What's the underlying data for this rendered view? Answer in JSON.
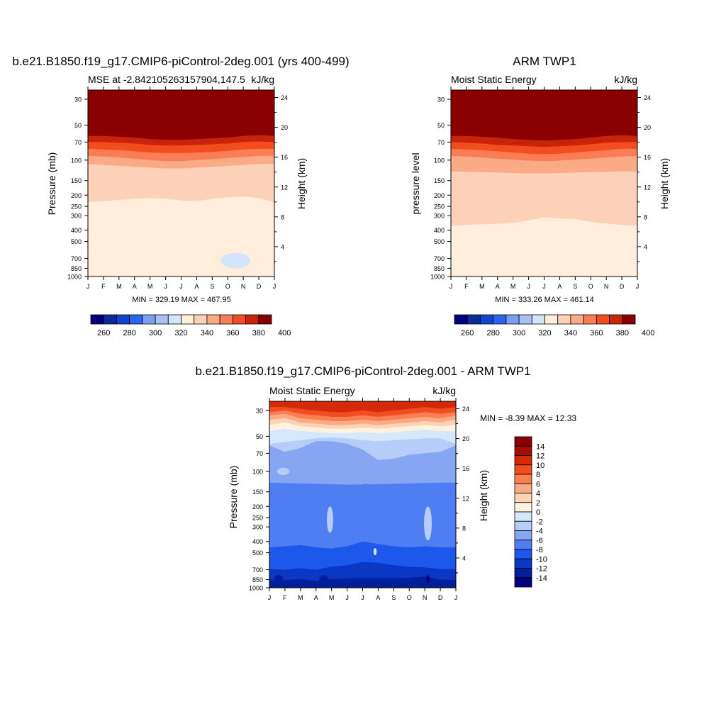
{
  "colors": {
    "mse": [
      "#00007f",
      "#0a2c9b",
      "#1045cf",
      "#2c63f0",
      "#7d9ff0",
      "#a8c1f5",
      "#d2e5fb",
      "#ffeedc",
      "#fdd0b8",
      "#fbaa88",
      "#fb7d55",
      "#f14d1f",
      "#c8240a",
      "#8b0000"
    ],
    "diff": [
      "#00007f",
      "#001f9b",
      "#0a38c4",
      "#1c58ec",
      "#4f7df2",
      "#86a6f4",
      "#b5cdf8",
      "#d5e8fb",
      "#fff2e0",
      "#fdd3b6",
      "#fbab84",
      "#fb7e52",
      "#f14d1f",
      "#d42a08",
      "#a60d00",
      "#8b0000"
    ],
    "stroke": "#000000"
  },
  "chart_data": [
    {
      "type": "contour",
      "title": "b.e21.B1850.f19_g17.CMIP6-piControl-2deg.001 (yrs 400-499)",
      "left_subtitle": "MSE at -2.842105263157904,147.5",
      "right_subtitle": "kJ/kg",
      "ylabel": "Pressure (mb)",
      "ylabel_right": "Height (km)",
      "x_ticks": [
        "J",
        "F",
        "M",
        "A",
        "M",
        "J",
        "J",
        "A",
        "S",
        "O",
        "N",
        "D",
        "J"
      ],
      "y_ticks": [
        "30",
        "50",
        "70",
        "100",
        "150",
        "200",
        "250",
        "300",
        "400",
        "500",
        "700",
        "850",
        "1000"
      ],
      "y_ticks_right": [
        "24",
        "20",
        "16",
        "12",
        "8",
        "4"
      ],
      "min_max_text": "MIN = 329.19 MAX = 467.95",
      "colorbar_labels": [
        "260",
        "280",
        "300",
        "320",
        "340",
        "360",
        "380",
        "400"
      ],
      "bands_desc": "pressure (mb) of lower boundary of each band at J,F,...,J",
      "bands": [
        {
          "c": 13,
          "p": [
            62,
            62,
            63,
            64,
            66,
            67,
            67,
            66,
            65,
            64,
            62,
            61,
            62
          ]
        },
        {
          "c": 12,
          "p": [
            70,
            70,
            71,
            72,
            74,
            75,
            75,
            74,
            73,
            72,
            70,
            69,
            70
          ]
        },
        {
          "c": 11,
          "p": [
            80,
            81,
            82,
            84,
            86,
            87,
            87,
            86,
            85,
            83,
            81,
            80,
            80
          ]
        },
        {
          "c": 10,
          "p": [
            92,
            93,
            95,
            97,
            100,
            102,
            102,
            100,
            98,
            96,
            94,
            92,
            92
          ]
        },
        {
          "c": 9,
          "p": [
            108,
            110,
            112,
            114,
            116,
            118,
            118,
            116,
            114,
            112,
            110,
            108,
            108
          ]
        },
        {
          "c": 8,
          "p": [
            230,
            225,
            220,
            215,
            212,
            215,
            222,
            225,
            215,
            208,
            205,
            212,
            230
          ]
        },
        {
          "c": 7,
          "p": [
            940,
            940,
            940,
            940,
            940,
            940,
            940,
            940,
            940,
            940,
            940,
            940,
            940
          ]
        }
      ],
      "blobs": [
        {
          "c": 6,
          "month": 9.5,
          "p": 730,
          "w": 0.95,
          "h": 0.03
        }
      ]
    },
    {
      "type": "contour",
      "title": "ARM TWP1",
      "left_subtitle": "Moist Static Energy",
      "right_subtitle": "kJ/kg",
      "ylabel": "pressure level",
      "ylabel_right": "Height (km)",
      "x_ticks": [
        "J",
        "F",
        "M",
        "A",
        "M",
        "J",
        "J",
        "A",
        "S",
        "O",
        "N",
        "D",
        "J"
      ],
      "y_ticks": [
        "30",
        "50",
        "70",
        "100",
        "150",
        "200",
        "250",
        "300",
        "400",
        "500",
        "700",
        "850",
        "1000"
      ],
      "y_ticks_right": [
        "24",
        "20",
        "16",
        "12",
        "8",
        "4"
      ],
      "min_max_text": "MIN = 333.26 MAX = 461.14",
      "colorbar_labels": [
        "260",
        "280",
        "300",
        "320",
        "340",
        "360",
        "380",
        "400"
      ],
      "bands_desc": "pressure (mb) of lower boundary of each band at J,F,...,J",
      "bands": [
        {
          "c": 13,
          "p": [
            62,
            62,
            63,
            64,
            66,
            67,
            68,
            67,
            66,
            64,
            62,
            61,
            62
          ]
        },
        {
          "c": 12,
          "p": [
            70,
            71,
            72,
            74,
            75,
            76,
            77,
            76,
            75,
            73,
            71,
            70,
            70
          ]
        },
        {
          "c": 11,
          "p": [
            80,
            81,
            82,
            84,
            86,
            88,
            89,
            88,
            86,
            84,
            82,
            80,
            80
          ]
        },
        {
          "c": 10,
          "p": [
            92,
            93,
            95,
            97,
            99,
            101,
            102,
            101,
            99,
            97,
            95,
            93,
            92
          ]
        },
        {
          "c": 9,
          "p": [
            125,
            126,
            127,
            128,
            129,
            130,
            130,
            129,
            128,
            127,
            126,
            125,
            125
          ]
        },
        {
          "c": 8,
          "p": [
            365,
            360,
            355,
            352,
            345,
            330,
            310,
            318,
            320,
            340,
            350,
            360,
            365
          ]
        },
        {
          "c": 7,
          "p": [
            820,
            820,
            810,
            820,
            800,
            815,
            815,
            800,
            815,
            820,
            810,
            810,
            820
          ]
        }
      ],
      "blobs": []
    },
    {
      "type": "contour",
      "title": "b.e21.B1850.f19_g17.CMIP6-piControl-2deg.001 - ARM TWP1",
      "left_subtitle": "Moist Static Energy",
      "right_subtitle": "kJ/kg",
      "ylabel": "Pressure (mb)",
      "ylabel_right": "Height (km)",
      "x_ticks": [
        "J",
        "F",
        "M",
        "A",
        "M",
        "J",
        "J",
        "A",
        "S",
        "O",
        "N",
        "D",
        "J"
      ],
      "y_ticks": [
        "30",
        "50",
        "70",
        "100",
        "150",
        "200",
        "250",
        "300",
        "400",
        "500",
        "700",
        "850",
        "1000"
      ],
      "y_ticks_right": [
        "24",
        "20",
        "16",
        "12",
        "8",
        "4"
      ],
      "min_max_text": "MIN =  -8.39 MAX =  12.33",
      "colorbar_labels": [
        "14",
        "12",
        "10",
        "8",
        "6",
        "4",
        "2",
        "0",
        "-2",
        "-4",
        "-6",
        "-8",
        "-10",
        "-12",
        "-14"
      ],
      "bands_desc": "pressure (mb) of lower boundary of each band at J,F,...,J",
      "bands": [
        {
          "c": 13,
          "p": [
            28,
            28,
            29,
            30,
            31,
            31,
            30,
            31,
            30,
            29,
            28,
            29,
            28
          ]
        },
        {
          "c": 12,
          "p": [
            31,
            30,
            32,
            33,
            34,
            34,
            33,
            34,
            33,
            32,
            31,
            32,
            31
          ]
        },
        {
          "c": 11,
          "p": [
            33,
            32,
            35,
            36,
            37,
            37,
            36,
            37,
            36,
            35,
            34,
            35,
            33
          ]
        },
        {
          "c": 10,
          "p": [
            36,
            35,
            38,
            39,
            40,
            40,
            39,
            40,
            39,
            38,
            37,
            38,
            36
          ]
        },
        {
          "c": 9,
          "p": [
            40,
            38,
            41,
            42,
            43,
            43,
            42,
            43,
            42,
            41,
            40,
            41,
            40
          ]
        },
        {
          "c": 8,
          "p": [
            45,
            43,
            45,
            46,
            47,
            47,
            46,
            47,
            46,
            45,
            44,
            45,
            45
          ]
        },
        {
          "c": 7,
          "p": [
            58,
            56,
            54,
            52,
            51,
            52,
            54,
            55,
            54,
            53,
            52,
            52,
            58
          ]
        },
        {
          "c": 6,
          "p": [
            60,
            68,
            63,
            55,
            55,
            58,
            65,
            80,
            78,
            72,
            70,
            68,
            60
          ]
        },
        {
          "c": 5,
          "p": [
            125,
            126,
            127,
            128,
            129,
            130,
            130,
            129,
            128,
            127,
            126,
            125,
            125
          ]
        },
        {
          "c": 4,
          "p": [
            450,
            440,
            430,
            450,
            460,
            440,
            400,
            420,
            440,
            450,
            440,
            450,
            450
          ]
        },
        {
          "c": 3,
          "p": [
            690,
            700,
            680,
            700,
            660,
            640,
            600,
            610,
            640,
            660,
            670,
            690,
            690
          ]
        },
        {
          "c": 2,
          "p": [
            860,
            860,
            840,
            870,
            840,
            830,
            830,
            830,
            830,
            820,
            800,
            850,
            860
          ]
        },
        {
          "c": 1,
          "p": [
            930,
            930,
            920,
            930,
            920,
            920,
            920,
            920,
            920,
            920,
            900,
            920,
            930
          ]
        }
      ],
      "blobs": [
        {
          "c": 4,
          "month": 6.2,
          "p": 155,
          "w": 0.8,
          "h": 0.04
        },
        {
          "c": 6,
          "month": 0.9,
          "p": 100,
          "w": 0.4,
          "h": 0.008
        },
        {
          "c": 6,
          "month": 3.9,
          "p": 260,
          "w": 0.2,
          "h": 0.06
        },
        {
          "c": 6,
          "month": 10.2,
          "p": 280,
          "w": 0.25,
          "h": 0.08
        },
        {
          "c": 7,
          "month": 6.8,
          "p": 490,
          "w": 0.1,
          "h": 0.008
        },
        {
          "c": 1,
          "month": 0.6,
          "p": 840,
          "w": 0.3,
          "h": 0.01
        },
        {
          "c": 0,
          "month": 10.2,
          "p": 840,
          "w": 0.1,
          "h": 0.01
        },
        {
          "c": 1,
          "month": 3.5,
          "p": 840,
          "w": 0.3,
          "h": 0.008
        }
      ]
    }
  ]
}
